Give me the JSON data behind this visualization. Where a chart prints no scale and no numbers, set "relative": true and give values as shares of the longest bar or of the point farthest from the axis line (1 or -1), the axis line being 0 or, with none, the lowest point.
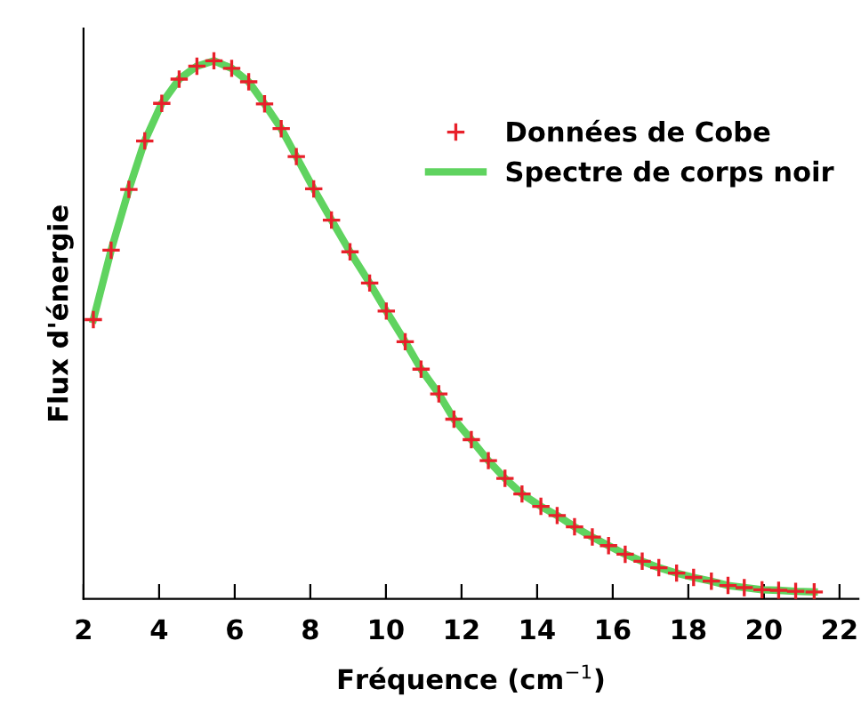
{
  "chart_data": {
    "type": "scatter",
    "relative": true,
    "xlabel": "Fréquence (cm$^{−1}$)",
    "ylabel": "Flux d'énergie",
    "xlim": [
      2,
      22.5
    ],
    "xticks": [
      2,
      4,
      6,
      8,
      10,
      12,
      14,
      16,
      18,
      20,
      22
    ],
    "tick_labels": "x",
    "grid": false,
    "legend": "right",
    "x": [
      2.26,
      2.73,
      3.2,
      3.62,
      4.07,
      4.53,
      5.0,
      5.45,
      5.92,
      6.37,
      6.79,
      7.23,
      7.63,
      8.09,
      8.56,
      9.05,
      9.57,
      10.01,
      10.51,
      10.93,
      11.4,
      11.8,
      12.26,
      12.71,
      13.15,
      13.6,
      14.1,
      14.53,
      14.99,
      15.46,
      15.89,
      16.33,
      16.78,
      17.22,
      17.69,
      18.14,
      18.61,
      19.05,
      19.48,
      19.95,
      20.39,
      20.84,
      21.33
    ],
    "series": [
      {
        "name": "Données de Cobe",
        "marker": "cross",
        "color": "#e8202a",
        "values": [
          0.519,
          0.648,
          0.761,
          0.851,
          0.921,
          0.966,
          0.99,
          1.0,
          0.986,
          0.961,
          0.92,
          0.874,
          0.822,
          0.762,
          0.704,
          0.645,
          0.587,
          0.535,
          0.478,
          0.427,
          0.381,
          0.334,
          0.296,
          0.257,
          0.224,
          0.195,
          0.172,
          0.155,
          0.134,
          0.115,
          0.099,
          0.083,
          0.07,
          0.058,
          0.048,
          0.04,
          0.033,
          0.025,
          0.021,
          0.017,
          0.016,
          0.014,
          0.013
        ]
      },
      {
        "name": "Spectre de corps noir",
        "type": "line",
        "line_style": "solid",
        "color": "#5fd35f",
        "values": [
          0.519,
          0.648,
          0.761,
          0.851,
          0.921,
          0.966,
          0.99,
          1.0,
          0.986,
          0.961,
          0.92,
          0.874,
          0.822,
          0.762,
          0.704,
          0.645,
          0.587,
          0.535,
          0.478,
          0.427,
          0.381,
          0.334,
          0.296,
          0.257,
          0.224,
          0.195,
          0.172,
          0.155,
          0.134,
          0.115,
          0.099,
          0.083,
          0.07,
          0.058,
          0.048,
          0.04,
          0.033,
          0.025,
          0.021,
          0.017,
          0.016,
          0.014,
          0.013
        ]
      }
    ]
  }
}
